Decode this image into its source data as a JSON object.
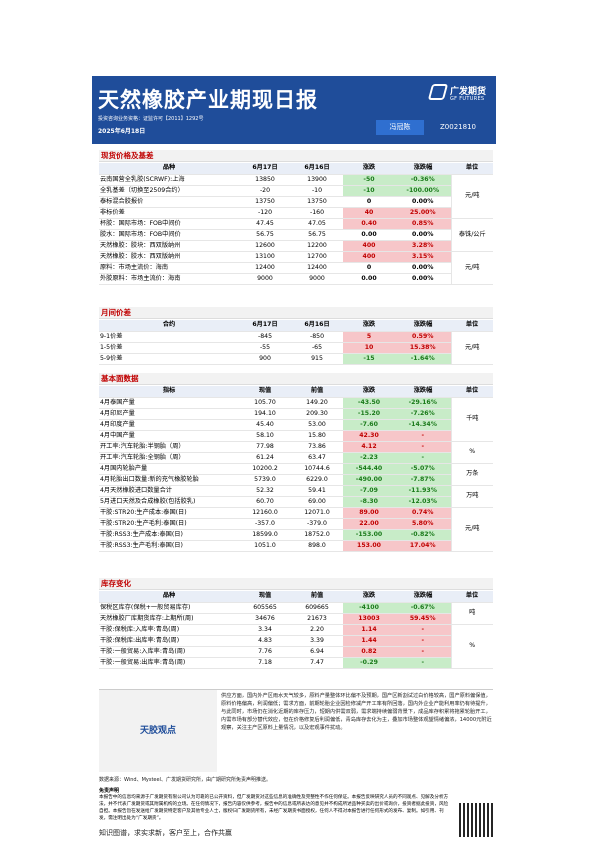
{
  "header": {
    "title": "天然橡胶产业期现日报",
    "logo_cn": "广发期货",
    "logo_en": "GF FUTURES",
    "license": "投资咨询业务资格：证监许可【2011】1292号",
    "date": "2025年6月18日",
    "analyst_label": "冯冠陈",
    "analyst_id": "Z0021810"
  },
  "spot": {
    "section": "现货价格及基差",
    "headers": [
      "品种",
      "6月17日",
      "6月16日",
      "涨跌",
      "涨跌幅",
      "单位"
    ],
    "rows": [
      {
        "name": "云南国营全乳胶(SCRWF):上海",
        "a": "13850",
        "b": "13900",
        "chg": "-50",
        "pct": "-0.36%",
        "dir": "dn"
      },
      {
        "name": "全乳基差（切换至2509合约）",
        "a": "-20",
        "b": "-10",
        "chg": "-10",
        "pct": "-100.00%",
        "dir": "dn"
      },
      {
        "name": "泰标混合胶报价",
        "a": "13750",
        "b": "13750",
        "chg": "0",
        "pct": "0.00%",
        "dir": "z"
      },
      {
        "name": "非标价差",
        "a": "-120",
        "b": "-160",
        "chg": "40",
        "pct": "25.00%",
        "dir": "up"
      },
      {
        "name": "杯胶：国际市场：FOB中间价",
        "a": "47.45",
        "b": "47.05",
        "chg": "0.40",
        "pct": "0.85%",
        "dir": "up"
      },
      {
        "name": "胶水：国际市场：FOB中间价",
        "a": "56.75",
        "b": "56.75",
        "chg": "0.00",
        "pct": "0.00%",
        "dir": "z"
      },
      {
        "name": "天然橡胶：胶块：西双版纳州",
        "a": "12600",
        "b": "12200",
        "chg": "400",
        "pct": "3.28%",
        "dir": "up"
      },
      {
        "name": "天然橡胶：胶水：西双版纳州",
        "a": "13100",
        "b": "12700",
        "chg": "400",
        "pct": "3.15%",
        "dir": "up"
      },
      {
        "name": "原料：市场主流价：海南",
        "a": "12400",
        "b": "12400",
        "chg": "0",
        "pct": "0.00%",
        "dir": "z"
      },
      {
        "name": "外胶原料：市场主流价：海南",
        "a": "9000",
        "b": "9000",
        "chg": "0.00",
        "pct": "0.00%",
        "dir": "z"
      }
    ],
    "units": [
      "元/吨",
      "泰铢/公斤",
      "元/吨"
    ]
  },
  "spread": {
    "section": "月间价差",
    "headers": [
      "合约",
      "6月17日",
      "6月16日",
      "涨跌",
      "涨跌幅",
      "单位"
    ],
    "rows": [
      {
        "name": "9-1价差",
        "a": "-845",
        "b": "-850",
        "chg": "5",
        "pct": "0.59%",
        "dir": "up"
      },
      {
        "name": "1-5价差",
        "a": "-55",
        "b": "-65",
        "chg": "10",
        "pct": "15.38%",
        "dir": "up"
      },
      {
        "name": "5-9价差",
        "a": "900",
        "b": "915",
        "chg": "-15",
        "pct": "-1.64%",
        "dir": "dn"
      }
    ],
    "unit": "元/吨"
  },
  "fundamentals": {
    "section": "基本面数据",
    "headers": [
      "指标",
      "现值",
      "前值",
      "涨跌",
      "涨跌幅",
      "单位"
    ],
    "rows": [
      {
        "name": "4月泰国产量",
        "a": "105.70",
        "b": "149.20",
        "chg": "-43.50",
        "pct": "-29.16%",
        "dir": "dn"
      },
      {
        "name": "4月印尼产量",
        "a": "194.10",
        "b": "209.30",
        "chg": "-15.20",
        "pct": "-7.26%",
        "dir": "dn"
      },
      {
        "name": "4月印度产量",
        "a": "45.40",
        "b": "53.00",
        "chg": "-7.60",
        "pct": "-14.34%",
        "dir": "dn"
      },
      {
        "name": "4月中国产量",
        "a": "58.10",
        "b": "15.80",
        "chg": "42.30",
        "pct": "-",
        "dir": "up"
      },
      {
        "name": "开工率:汽车轮胎:半钢胎（周）",
        "a": "77.98",
        "b": "73.86",
        "chg": "4.12",
        "pct": "-",
        "dir": "up"
      },
      {
        "name": "开工率:汽车轮胎:全钢胎（周）",
        "a": "61.24",
        "b": "63.47",
        "chg": "-2.23",
        "pct": "-",
        "dir": "dn"
      },
      {
        "name": "4月国内轮胎产量",
        "a": "10200.2",
        "b": "10744.6",
        "chg": "-544.40",
        "pct": "-5.07%",
        "dir": "dn"
      },
      {
        "name": "4月轮胎出口数量:新的充气橡胶轮胎",
        "a": "5739.0",
        "b": "6229.0",
        "chg": "-490.00",
        "pct": "-7.87%",
        "dir": "dn"
      },
      {
        "name": "4月天然橡胶进口数量合计",
        "a": "52.32",
        "b": "59.41",
        "chg": "-7.09",
        "pct": "-11.93%",
        "dir": "dn"
      },
      {
        "name": "5月进口天然及合成橡胶(包括胶乳)",
        "a": "60.70",
        "b": "69.00",
        "chg": "-8.30",
        "pct": "-12.03%",
        "dir": "dn"
      },
      {
        "name": "干胶:STR20:生产成本:泰国(日)",
        "a": "12160.0",
        "b": "12071.0",
        "chg": "89.00",
        "pct": "0.74%",
        "dir": "up"
      },
      {
        "name": "干胶:STR20:生产毛利:泰国(日)",
        "a": "-357.0",
        "b": "-379.0",
        "chg": "22.00",
        "pct": "5.80%",
        "dir": "up"
      },
      {
        "name": "干胶:RSS3:生产成本:泰国(日)",
        "a": "18599.0",
        "b": "18752.0",
        "chg": "-153.00",
        "pct": "-0.82%",
        "dir": "dn"
      },
      {
        "name": "干胶:RSS3:生产毛利:泰国(日)",
        "a": "1051.0",
        "b": "898.0",
        "chg": "153.00",
        "pct": "17.04%",
        "dir": "up"
      }
    ],
    "units": [
      "千吨",
      "%",
      "万条",
      "万吨",
      "元/吨"
    ]
  },
  "inventory": {
    "section": "库存变化",
    "headers": [
      "品种",
      "现值",
      "前值",
      "涨跌",
      "涨跌幅",
      "单位"
    ],
    "rows": [
      {
        "name": "保税区库存(保税+一般贸易库存)",
        "a": "605565",
        "b": "609665",
        "chg": "-4100",
        "pct": "-0.67%",
        "dir": "dn"
      },
      {
        "name": "天然橡胶厂库期货库存:上期所(周)",
        "a": "34676",
        "b": "21673",
        "chg": "13003",
        "pct": "59.45%",
        "dir": "up"
      },
      {
        "name": "干胶:保税库:入库率:青岛(周)",
        "a": "3.34",
        "b": "2.20",
        "chg": "1.14",
        "pct": "-",
        "dir": "up"
      },
      {
        "name": "干胶:保税库:出库率:青岛(周)",
        "a": "4.83",
        "b": "3.39",
        "chg": "1.44",
        "pct": "-",
        "dir": "up"
      },
      {
        "name": "干胶:一般贸易:入库率:青岛(周)",
        "a": "7.76",
        "b": "6.94",
        "chg": "0.82",
        "pct": "-",
        "dir": "up"
      },
      {
        "name": "干胶:一般贸易:出库率:青岛(周)",
        "a": "7.18",
        "b": "7.47",
        "chg": "-0.29",
        "pct": "-",
        "dir": "dn"
      }
    ],
    "units": [
      "吨",
      "%"
    ]
  },
  "view": {
    "label": "天胶观点",
    "text": "供应方面，国内外产区雨水天气较多，原料产量整体环比偏不及预期，国产区新割试过白价格较高，国产原料偏保值，原料价格偏高，利润偏低；需求方面，前期轮胎企业因检修减产开工率有所回落，国内外企业产能利用率仍有待提升，与此同时，市场仍在消化近期的库存压力，短期内供需双弱，需求端持续偏弱背景下，成品库存积累将拖累轮胎开工，内需市场有部分替代效应，但在价格修复后利润偏低，青岛库存去化为主，叠加市场整体观望情绪偏浓，14000元附近观察，关注主产区原料上量情况，以及宏观事件扰动。"
  },
  "footer": {
    "source": "数据来源：Wind、Mysteel、广发期货研究所，由广期研究所免责声明推送。",
    "disclaimer_title": "免责声明",
    "disclaimer": "本报告中的信息均来源于广发期货有限公司认为可靠的已公开资料，但广发期货对这些信息的准确性及完整性不作任何保证。本报告反映研究人员的不同观点、见解及分析方法，并不代表广发期货或其附属机构的立场。在任何情况下，报告内容仅供参考，报告中的信息或所表达的意见并不构成所述品种买卖的出价或询价，投资者据此投资，风险自担。本报告旨在发送给广发期货特定客户及其他专业人士，版权归广发期货所有，未经广发期货书面授权，任何人不得对本报告进行任何形式的发布、复制。如引用、刊发，需注明出处为“广发期货”。",
    "slogan": "知识图谱，求实求新，客户至上，合作共赢"
  }
}
